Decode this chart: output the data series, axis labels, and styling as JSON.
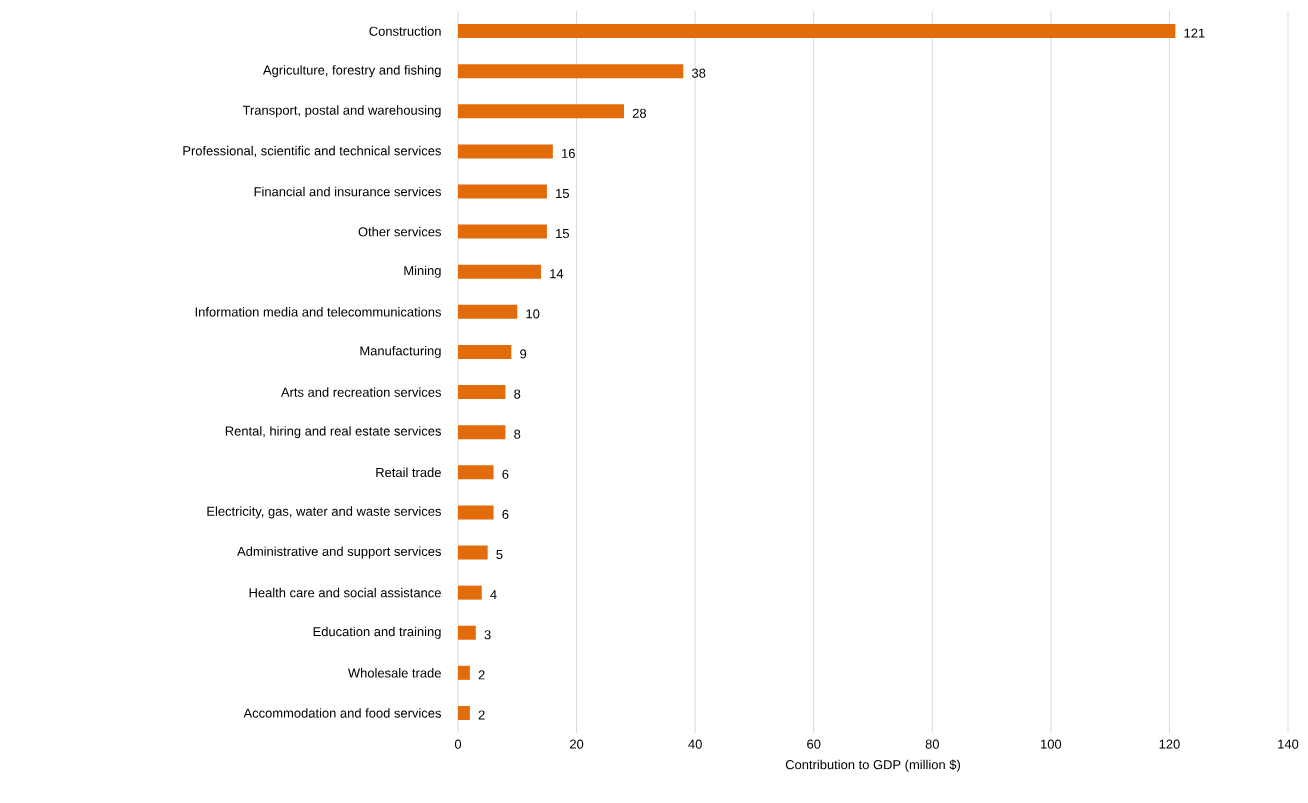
{
  "chart_data": {
    "type": "bar",
    "orientation": "horizontal",
    "xlabel": "Contribution to GDP (million $)",
    "categories": [
      "Construction",
      "Agriculture, forestry and fishing",
      "Transport, postal and warehousing",
      "Professional, scientific and technical services",
      "Financial and insurance services",
      "Other services",
      "Mining",
      "Information media and telecommunications",
      "Manufacturing",
      "Arts and recreation services",
      "Rental, hiring and real estate services",
      "Retail trade",
      "Electricity, gas, water and waste services",
      "Administrative and support services",
      "Health care and social assistance",
      "Education and training",
      "Wholesale trade",
      "Accommodation and food services"
    ],
    "values": [
      121,
      38,
      28,
      16,
      15,
      15,
      14,
      10,
      9,
      8,
      8,
      6,
      6,
      5,
      4,
      3,
      2,
      2
    ],
    "color": "#e26b0a",
    "data_labels": true,
    "grid": "x",
    "xlim": [
      0,
      140
    ],
    "xticks": [
      0,
      20,
      40,
      60,
      80,
      100,
      120,
      140
    ]
  }
}
